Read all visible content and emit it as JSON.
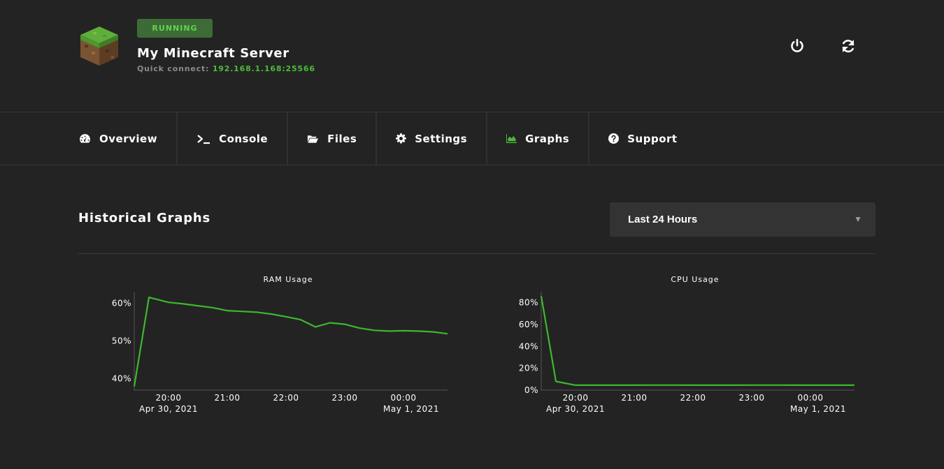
{
  "header": {
    "status": "RUNNING",
    "server_name": "My Minecraft Server",
    "quick_connect_label": "Quick connect:",
    "quick_connect_address": "192.168.1.168:25566",
    "icons": {
      "logo": "grass-block-logo",
      "power": "power-icon",
      "refresh": "refresh-icon"
    }
  },
  "nav": {
    "tabs": [
      {
        "label": "Overview",
        "icon": "gauge-icon",
        "active": false
      },
      {
        "label": "Console",
        "icon": "terminal-icon",
        "active": false
      },
      {
        "label": "Files",
        "icon": "folder-open-icon",
        "active": false
      },
      {
        "label": "Settings",
        "icon": "gear-icon",
        "active": false
      },
      {
        "label": "Graphs",
        "icon": "area-chart-icon",
        "active": true
      },
      {
        "label": "Support",
        "icon": "question-circle-icon",
        "active": false
      }
    ]
  },
  "main": {
    "title": "Historical Graphs",
    "range": {
      "selected": "Last 24 Hours"
    }
  },
  "colors": {
    "accent": "#4cbb39",
    "badge_bg": "#3d6b37",
    "background": "#232323",
    "line": "#3db82e"
  },
  "chart_data": [
    {
      "type": "line",
      "title": "RAM Usage",
      "x_start": "Apr 30, 2021 19:25",
      "x_end": "May 1, 2021 00:45",
      "x_ticks": [
        "20:00",
        "21:00",
        "22:00",
        "23:00",
        "00:00"
      ],
      "x_date_labels": [
        "Apr 30, 2021",
        "May 1, 2021"
      ],
      "y_ticks": [
        "40%",
        "50%",
        "60%"
      ],
      "ylim": [
        37,
        63
      ],
      "x": [
        "19:25",
        "19:40",
        "20:00",
        "20:15",
        "20:30",
        "20:45",
        "21:00",
        "21:15",
        "21:30",
        "21:45",
        "22:00",
        "22:15",
        "22:30",
        "22:45",
        "23:00",
        "23:15",
        "23:30",
        "23:45",
        "00:00",
        "00:15",
        "00:30",
        "00:45"
      ],
      "values": [
        38,
        61.5,
        60.2,
        59.8,
        59.3,
        58.8,
        58.0,
        57.8,
        57.6,
        57.1,
        56.4,
        55.6,
        53.7,
        54.8,
        54.4,
        53.4,
        52.8,
        52.6,
        52.7,
        52.6,
        52.4,
        51.9
      ]
    },
    {
      "type": "line",
      "title": "CPU Usage",
      "x_start": "Apr 30, 2021 19:25",
      "x_end": "May 1, 2021 00:45",
      "x_ticks": [
        "20:00",
        "21:00",
        "22:00",
        "23:00",
        "00:00"
      ],
      "x_date_labels": [
        "Apr 30, 2021",
        "May 1, 2021"
      ],
      "y_ticks": [
        "0%",
        "20%",
        "40%",
        "60%",
        "80%"
      ],
      "ylim": [
        0,
        90
      ],
      "x": [
        "19:25",
        "19:40",
        "20:00",
        "20:15",
        "20:30",
        "20:45",
        "21:00",
        "21:15",
        "21:30",
        "21:45",
        "22:00",
        "22:15",
        "22:30",
        "22:45",
        "23:00",
        "23:15",
        "23:30",
        "23:45",
        "00:00",
        "00:15",
        "00:30",
        "00:45"
      ],
      "values": [
        86,
        8,
        4.5,
        4.5,
        4.5,
        4.5,
        4.5,
        4.6,
        4.6,
        4.6,
        4.5,
        4.5,
        4.5,
        4.5,
        4.6,
        4.6,
        4.6,
        4.5,
        4.5,
        4.5,
        4.5,
        4.5
      ]
    }
  ]
}
